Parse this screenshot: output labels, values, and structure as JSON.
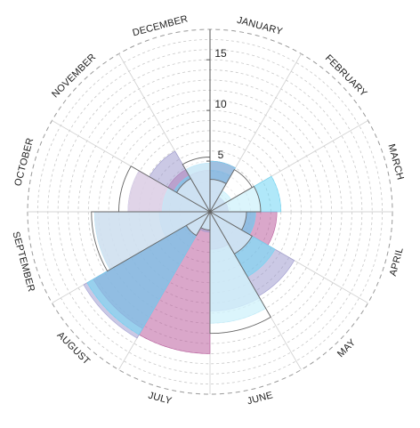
{
  "chart_data": {
    "type": "polar-area",
    "categories": [
      "JANUARY",
      "FEBRUARY",
      "MARCH",
      "APRIL",
      "MAY",
      "JUNE",
      "JULY",
      "AUGUST",
      "SEPTEMBER",
      "OCTOBER",
      "NOVEMBER",
      "DECEMBER"
    ],
    "radial_ticks": [
      5,
      10,
      15
    ],
    "rmax": 18,
    "grid_step": 1,
    "series": [
      {
        "color": "#bb5f9e",
        "values": [
          5.0,
          1.7,
          1.8,
          6.6,
          4.8,
          3.7,
          14.0,
          13.3,
          11.4,
          8.1,
          4.8,
          4.1
        ]
      },
      {
        "color": "#a19dd0",
        "values": [
          4.1,
          1.7,
          1.8,
          4.5,
          9.6,
          9.8,
          2.0,
          14.4,
          5.0,
          8.1,
          6.9,
          4.8
        ]
      },
      {
        "color": "#6fd6f4",
        "values": [
          5.0,
          2.4,
          7.0,
          4.5,
          7.4,
          11.0,
          1.8,
          14.0,
          11.4,
          4.7,
          4.1,
          4.8
        ]
      },
      {
        "color": "#ffffff",
        "values": [
          3.2,
          4.8,
          5.0,
          3.6,
          4.8,
          12.0,
          1.8,
          2.7,
          11.7,
          9.0,
          3.8,
          5.4
        ]
      }
    ]
  },
  "colors": {
    "grid": "#c8c8c8",
    "axis": "#555555"
  }
}
